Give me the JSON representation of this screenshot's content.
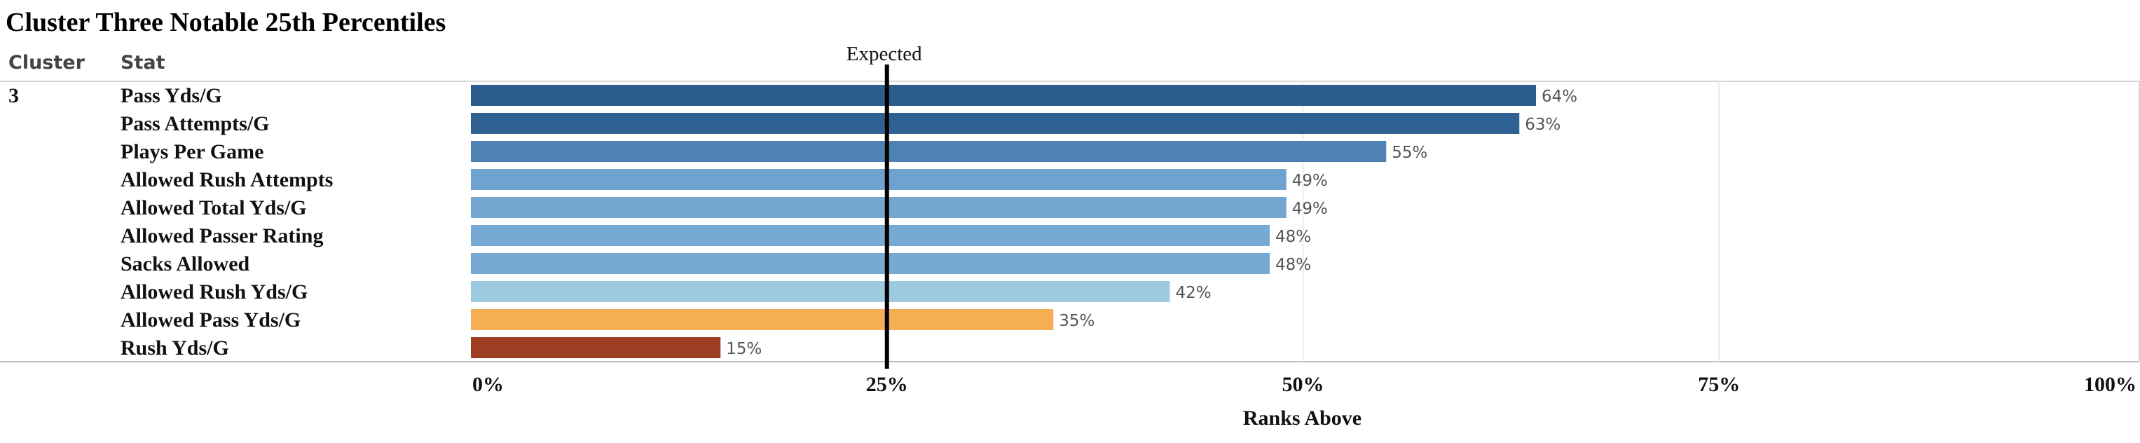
{
  "chart_data": {
    "type": "bar",
    "orientation": "horizontal",
    "title": "Cluster Three Notable 25th Percentiles",
    "column_headers": [
      "Cluster",
      "Stat"
    ],
    "cluster": "3",
    "categories": [
      "Pass Yds/G",
      "Pass Attempts/G",
      "Plays Per Game",
      "Allowed Rush Attempts",
      "Allowed Total Yds/G",
      "Allowed Passer Rating",
      "Sacks Allowed",
      "Allowed Rush Yds/G",
      "Allowed Pass Yds/G",
      "Rush Yds/G"
    ],
    "values": [
      64,
      63,
      55,
      49,
      49,
      48,
      48,
      42,
      35,
      15
    ],
    "data_labels": [
      "64%",
      "63%",
      "55%",
      "49%",
      "49%",
      "48%",
      "48%",
      "42%",
      "35%",
      "15%"
    ],
    "bar_colors": [
      "#2b5d8d",
      "#2f6193",
      "#4d82b3",
      "#6fa3cf",
      "#73a6d0",
      "#76a9d3",
      "#76a9d3",
      "#9ecae1",
      "#f6ae52",
      "#9e3e22"
    ],
    "xlabel": "Ranks Above",
    "xlim": [
      0,
      100
    ],
    "x_ticks": [
      0,
      25,
      50,
      75,
      100
    ],
    "x_tick_labels": [
      "0%",
      "25%",
      "50%",
      "75%",
      "100%"
    ],
    "reference_line": {
      "value": 25,
      "label": "Expected",
      "color": "#000000"
    },
    "grid": true
  }
}
